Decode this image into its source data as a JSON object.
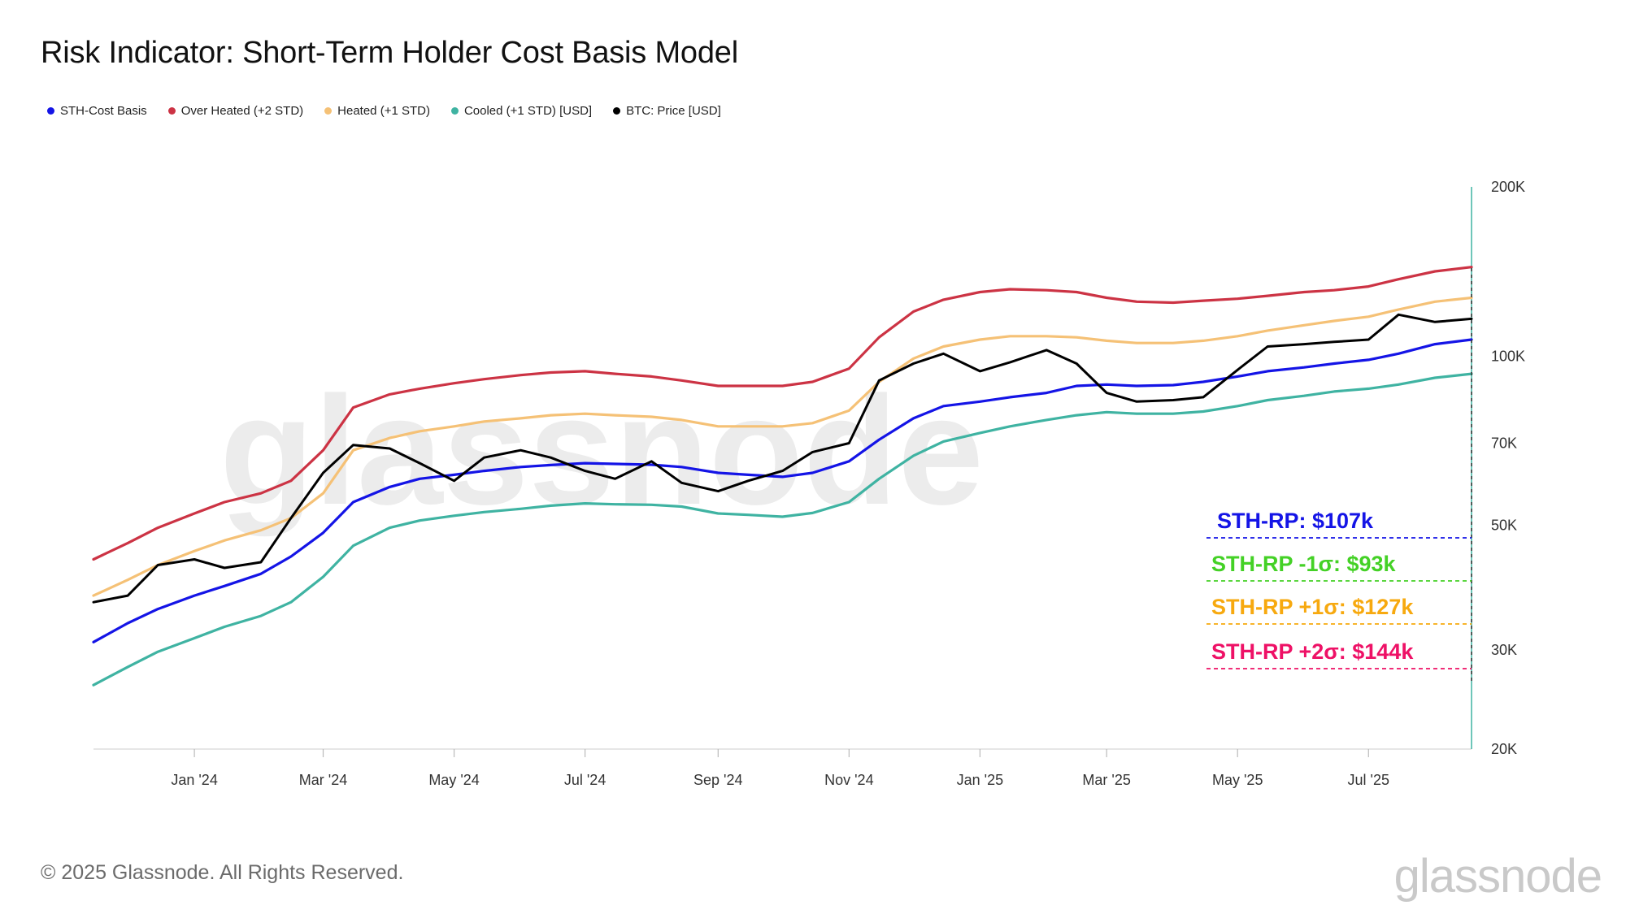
{
  "page": {
    "title": "Risk Indicator: Short-Term Holder Cost Basis Model",
    "footer": "© 2025 Glassnode. All Rights Reserved.",
    "logo_text": "glassnode",
    "watermark_text": "glassnode"
  },
  "chart_data": {
    "type": "line",
    "title": "Risk Indicator: Short-Term Holder Cost Basis Model",
    "y_scale": "log",
    "ylim": [
      20000,
      200000
    ],
    "y_ticks": [
      {
        "value": 200000,
        "label": "200K"
      },
      {
        "value": 100000,
        "label": "100K"
      },
      {
        "value": 70000,
        "label": "70K"
      },
      {
        "value": 50000,
        "label": "50K"
      },
      {
        "value": 30000,
        "label": "30K"
      },
      {
        "value": 20000,
        "label": "20K"
      }
    ],
    "xlim": [
      "2023-11-15",
      "2025-08-18"
    ],
    "x_ticks": [
      {
        "date": "2024-01-01",
        "label": "Jan '24"
      },
      {
        "date": "2024-03-01",
        "label": "Mar '24"
      },
      {
        "date": "2024-05-01",
        "label": "May '24"
      },
      {
        "date": "2024-07-01",
        "label": "Jul '24"
      },
      {
        "date": "2024-09-01",
        "label": "Sep '24"
      },
      {
        "date": "2024-11-01",
        "label": "Nov '24"
      },
      {
        "date": "2025-01-01",
        "label": "Jan '25"
      },
      {
        "date": "2025-03-01",
        "label": "Mar '25"
      },
      {
        "date": "2025-05-01",
        "label": "May '25"
      },
      {
        "date": "2025-07-01",
        "label": "Jul '25"
      }
    ],
    "grid": false,
    "legend": "top-left",
    "x": [
      "2023-11-15",
      "2023-12-01",
      "2023-12-15",
      "2024-01-01",
      "2024-01-15",
      "2024-02-01",
      "2024-02-15",
      "2024-03-01",
      "2024-03-15",
      "2024-04-01",
      "2024-04-15",
      "2024-05-01",
      "2024-05-15",
      "2024-06-01",
      "2024-06-15",
      "2024-07-01",
      "2024-07-15",
      "2024-08-01",
      "2024-08-15",
      "2024-09-01",
      "2024-09-15",
      "2024-10-01",
      "2024-10-15",
      "2024-11-01",
      "2024-11-15",
      "2024-12-01",
      "2024-12-15",
      "2025-01-01",
      "2025-01-15",
      "2025-02-01",
      "2025-02-15",
      "2025-03-01",
      "2025-03-15",
      "2025-04-01",
      "2025-04-15",
      "2025-05-01",
      "2025-05-15",
      "2025-06-01",
      "2025-06-15",
      "2025-07-01",
      "2025-07-15",
      "2025-08-01",
      "2025-08-18"
    ],
    "series": [
      {
        "name": "STH-Cost Basis",
        "color": "#1414e6",
        "values": [
          31000,
          33500,
          35500,
          37500,
          39000,
          41000,
          44000,
          48500,
          55000,
          58500,
          60500,
          61500,
          62500,
          63500,
          64000,
          64500,
          64300,
          64100,
          63500,
          62000,
          61500,
          61000,
          62000,
          65000,
          71000,
          77500,
          81500,
          83000,
          84500,
          86000,
          88500,
          89000,
          88500,
          88800,
          90000,
          92000,
          94000,
          95500,
          97000,
          98500,
          101000,
          105000,
          107000
        ]
      },
      {
        "name": "Over Heated (+2 STD)",
        "color": "#cc3344",
        "values": [
          43500,
          46500,
          49500,
          52500,
          55000,
          57000,
          60000,
          68000,
          81000,
          85500,
          87500,
          89500,
          91000,
          92500,
          93500,
          94000,
          93000,
          92000,
          90500,
          88500,
          88500,
          88500,
          90000,
          95000,
          108000,
          120000,
          126000,
          130000,
          131500,
          131000,
          130000,
          127000,
          125000,
          124500,
          125500,
          126500,
          128000,
          130000,
          131000,
          133000,
          137000,
          141500,
          144000
        ]
      },
      {
        "name": "Heated (+1 STD)",
        "color": "#f5c176",
        "values": [
          37500,
          40000,
          42500,
          45000,
          47000,
          49000,
          51500,
          57000,
          68000,
          71500,
          73500,
          75000,
          76500,
          77500,
          78500,
          79000,
          78500,
          78000,
          77000,
          75000,
          75000,
          75000,
          76000,
          80000,
          90000,
          99000,
          104000,
          107000,
          108500,
          108500,
          108000,
          106500,
          105500,
          105500,
          106500,
          108500,
          111000,
          113500,
          115500,
          117500,
          121000,
          125000,
          127000
        ]
      },
      {
        "name": "Cooled (+1 STD) [USD]",
        "color": "#3fb3a2",
        "values": [
          26000,
          28000,
          29800,
          31500,
          33000,
          34500,
          36500,
          40500,
          46000,
          49500,
          51000,
          52000,
          52800,
          53500,
          54200,
          54700,
          54500,
          54400,
          54000,
          52500,
          52200,
          51800,
          52600,
          55000,
          60500,
          66500,
          70500,
          73000,
          75000,
          77000,
          78500,
          79500,
          79000,
          79000,
          79700,
          81500,
          83500,
          85000,
          86500,
          87500,
          89000,
          91500,
          93000
        ]
      },
      {
        "name": "BTC: Price [USD]",
        "color": "#000000",
        "values": [
          36500,
          37500,
          42500,
          43500,
          42000,
          43000,
          51500,
          62000,
          69500,
          68500,
          64500,
          60000,
          66000,
          68000,
          66000,
          62500,
          60500,
          65000,
          59500,
          57500,
          60000,
          62500,
          67500,
          70000,
          90500,
          97000,
          101000,
          94000,
          97500,
          102500,
          97000,
          86000,
          83000,
          83500,
          84500,
          94500,
          104000,
          105000,
          106000,
          107000,
          118500,
          115000,
          116500
        ]
      }
    ],
    "annotations": [
      {
        "label": "STH-RP: $107k",
        "value": 107000,
        "color": "#1414e6"
      },
      {
        "label": "STH-RP -1σ: $93k",
        "value": 93000,
        "color": "#44d126"
      },
      {
        "label": "STH-RP +1σ: $127k",
        "value": 127000,
        "color": "#f7a90f"
      },
      {
        "label": "STH-RP +2σ: $144k",
        "value": 144000,
        "color": "#ee1166"
      }
    ]
  }
}
